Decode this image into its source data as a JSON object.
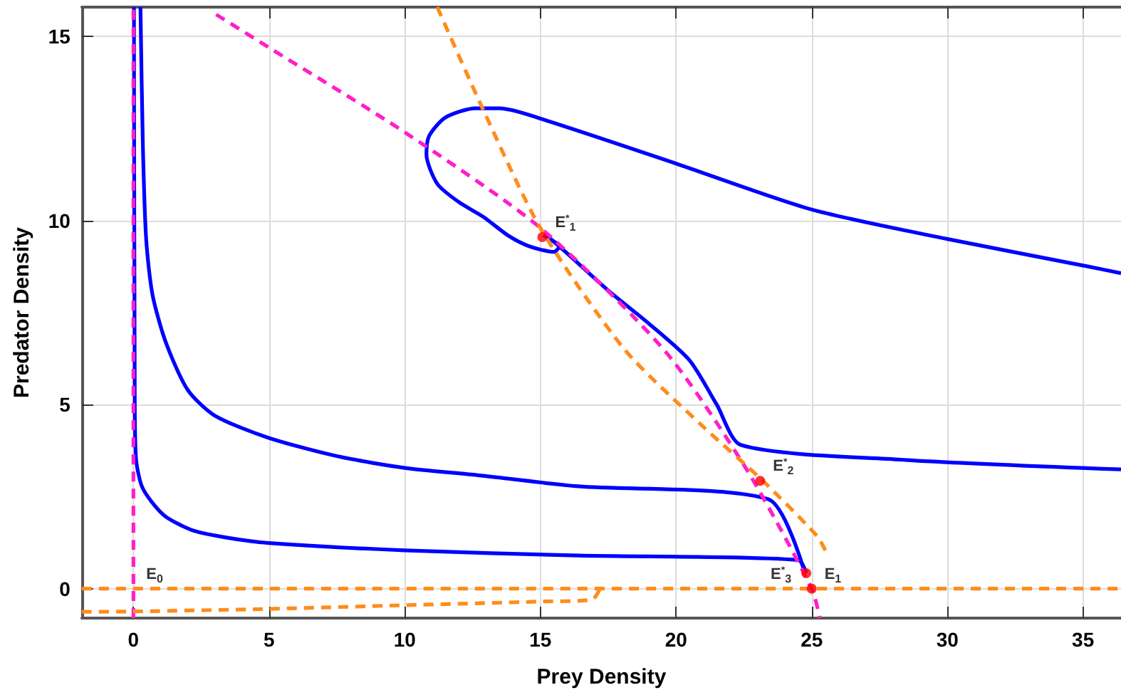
{
  "chart_data": {
    "type": "line",
    "xlabel": "Prey Density",
    "ylabel": "Predator Density",
    "xlim": [
      -1.9,
      36.4
    ],
    "ylim": [
      -0.8,
      15.8
    ],
    "xticks": [
      0,
      5,
      10,
      15,
      20,
      25,
      30,
      35
    ],
    "yticks": [
      0,
      5,
      10,
      15
    ],
    "grid": true,
    "marker": "none",
    "series": [
      {
        "color": "#ff1fc8",
        "line_style": "dashed",
        "x": [
          0,
          0
        ],
        "values": [
          -0.8,
          15.8
        ]
      },
      {
        "color": "#ff1fc8",
        "line_style": "dashed",
        "x": [
          3.05,
          5,
          10,
          15,
          19.6,
          22.6,
          25,
          25.3
        ],
        "values": [
          15.6,
          14.7,
          12.4,
          9.8,
          6.45,
          3.24,
          0,
          -0.8
        ]
      },
      {
        "color": "#ff8c1a",
        "line_style": "dashed",
        "x": [
          11.2,
          12.9,
          15,
          18.1,
          21,
          23.1,
          25.2,
          25.5
        ],
        "values": [
          15.8,
          13.0,
          9.8,
          6.5,
          4.4,
          3.0,
          1.43,
          1.04
        ]
      },
      {
        "color": "#ff8c1a",
        "line_style": "dashed",
        "x": [
          -1.9,
          36.4
        ],
        "values": [
          0,
          0
        ]
      },
      {
        "color": "#ff8c1a",
        "line_style": "dashed",
        "x": [
          -1.9,
          0,
          5,
          10,
          15,
          16.9,
          17.2
        ],
        "values": [
          -0.63,
          -0.62,
          -0.55,
          -0.45,
          -0.35,
          -0.3,
          0
        ]
      },
      {
        "color": "#0000ff",
        "line_style": "solid",
        "x": [
          36.4,
          35,
          30,
          25,
          20,
          15.3,
          13.5,
          12.6,
          11.5,
          10.9,
          10.8,
          11.2,
          12.0,
          12.9,
          13.8,
          14.6,
          15.5,
          15.7,
          15.1
        ],
        "values": [
          8.57,
          8.78,
          9.5,
          10.3,
          11.55,
          12.7,
          13.05,
          13.05,
          12.8,
          12.3,
          11.8,
          11.0,
          10.5,
          10.1,
          9.6,
          9.3,
          9.15,
          9.3,
          9.6
        ]
      },
      {
        "color": "#0000ff",
        "line_style": "solid",
        "x": [
          36.4,
          28.4,
          22.4,
          21.5,
          20.5,
          19,
          17.5,
          16,
          15.3
        ],
        "values": [
          3.24,
          3.5,
          3.9,
          5.0,
          6.2,
          7.2,
          8.1,
          9.1,
          9.55
        ]
      },
      {
        "color": "#0000ff",
        "line_style": "solid",
        "x": [
          0.26,
          0.35,
          0.47,
          0.7,
          1.19,
          2.0,
          3.0,
          4.97,
          7.5,
          10,
          12.6,
          16.4,
          23.4,
          24.7
        ],
        "values": [
          15.8,
          12,
          9.5,
          8,
          6.7,
          5.4,
          4.7,
          4.1,
          3.6,
          3.28,
          3.09,
          2.78,
          2.43,
          0.54
        ]
      },
      {
        "color": "#0000ff",
        "line_style": "solid",
        "x": [
          0.02,
          0.05,
          0.1,
          0.3,
          0.67,
          1.2,
          2.2,
          3.5,
          5,
          10,
          16.4,
          24.5,
          24.8
        ],
        "values": [
          15.8,
          5,
          3.5,
          2.8,
          2.36,
          1.95,
          1.58,
          1.38,
          1.24,
          1.04,
          0.9,
          0.78,
          0.42
        ]
      },
      {
        "type": "scatter",
        "marker": "circle",
        "color": "#ff0000",
        "x": [
          15.07,
          23.1,
          24.8,
          25
        ],
        "values": [
          9.55,
          2.93,
          0.42,
          0
        ]
      }
    ],
    "annotations": [
      {
        "text": "E$^{*}$$_{1}$",
        "x": 15.07,
        "y": 9.55
      },
      {
        "text": "E$^{*}$$_{2}$",
        "x": 23.1,
        "y": 2.93
      },
      {
        "text": "E$^{*}$$_{3}$",
        "x": 24.8,
        "y": 0.42
      },
      {
        "text": "E$_{1}$",
        "x": 25,
        "y": 0
      },
      {
        "text": "E$_{0}$",
        "x": 0,
        "y": 0
      }
    ]
  }
}
